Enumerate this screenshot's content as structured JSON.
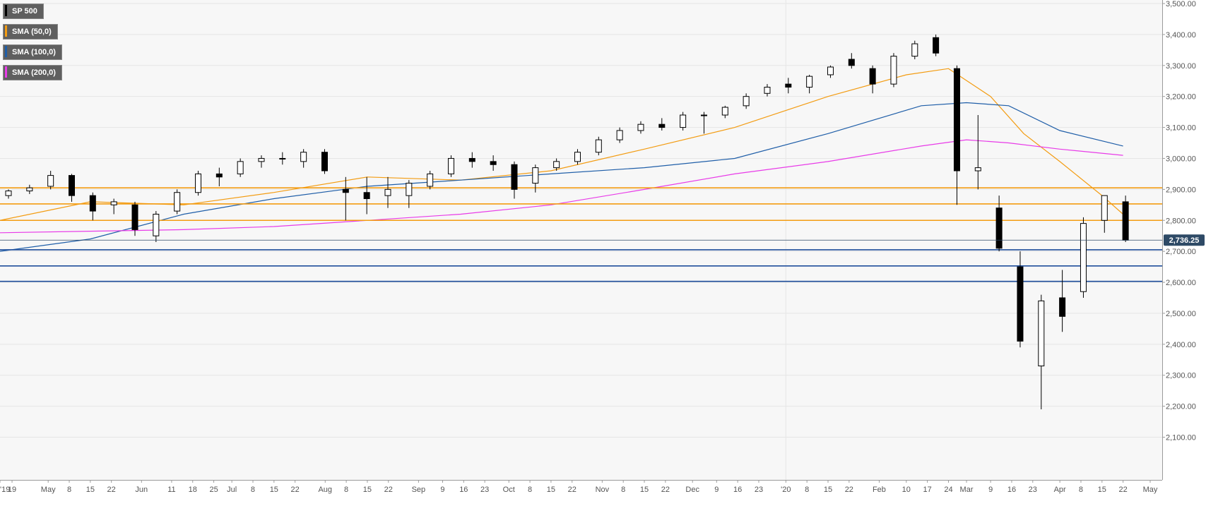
{
  "legend": [
    {
      "label": "SP 500",
      "color": "#000000"
    },
    {
      "label": "SMA (50,0)",
      "color": "#f39c12"
    },
    {
      "label": "SMA (100,0)",
      "color": "#1f5ea8"
    },
    {
      "label": "SMA (200,0)",
      "color": "#e83be8"
    }
  ],
  "colors": {
    "up": "#ffffff",
    "down": "#000000",
    "wick": "#000000",
    "resistance": "#f39c12",
    "support": "#1f4e9b",
    "grid": "#e6e6e6",
    "plot_bg": "#f7f7f7",
    "last_price_bg": "#2e4a66"
  },
  "chart_data": {
    "type": "candlestick",
    "instrument": "SP 500",
    "last_price": "2,736.25",
    "last_price_value": 2736.25,
    "ylim": [
      2070,
      3505
    ],
    "y_ticks": [
      {
        "value": 2100,
        "label": "2,100.00"
      },
      {
        "value": 2200,
        "label": "2,200.00"
      },
      {
        "value": 2300,
        "label": "2,300.00"
      },
      {
        "value": 2400,
        "label": "2,400.00"
      },
      {
        "value": 2500,
        "label": "2,500.00"
      },
      {
        "value": 2600,
        "label": "2,600.00"
      },
      {
        "value": 2700,
        "label": "2,700.00"
      },
      {
        "value": 2800,
        "label": "2,800.00"
      },
      {
        "value": 2900,
        "label": "2,900.00"
      },
      {
        "value": 3000,
        "label": "3,000.00"
      },
      {
        "value": 3100,
        "label": "3,100.00"
      },
      {
        "value": 3200,
        "label": "3,200.00"
      },
      {
        "value": 3300,
        "label": "3,300.00"
      },
      {
        "value": 3400,
        "label": "3,400.00"
      },
      {
        "value": 3500,
        "label": "3,500.00"
      }
    ],
    "x_ticks": [
      {
        "label": "'19",
        "date": "2019-04-15"
      },
      {
        "label": "19",
        "date": "2019-04-19"
      },
      {
        "label": "May",
        "date": "2019-05-01"
      },
      {
        "label": "8",
        "date": "2019-05-08"
      },
      {
        "label": "15",
        "date": "2019-05-15"
      },
      {
        "label": "22",
        "date": "2019-05-22"
      },
      {
        "label": "Jun",
        "date": "2019-06-01"
      },
      {
        "label": "11",
        "date": "2019-06-11"
      },
      {
        "label": "18",
        "date": "2019-06-18"
      },
      {
        "label": "25",
        "date": "2019-06-25"
      },
      {
        "label": "Jul",
        "date": "2019-07-01"
      },
      {
        "label": "8",
        "date": "2019-07-08"
      },
      {
        "label": "15",
        "date": "2019-07-15"
      },
      {
        "label": "22",
        "date": "2019-07-22"
      },
      {
        "label": "Aug",
        "date": "2019-08-01"
      },
      {
        "label": "8",
        "date": "2019-08-08"
      },
      {
        "label": "15",
        "date": "2019-08-15"
      },
      {
        "label": "22",
        "date": "2019-08-22"
      },
      {
        "label": "Sep",
        "date": "2019-09-01"
      },
      {
        "label": "9",
        "date": "2019-09-09"
      },
      {
        "label": "16",
        "date": "2019-09-16"
      },
      {
        "label": "23",
        "date": "2019-09-23"
      },
      {
        "label": "Oct",
        "date": "2019-10-01"
      },
      {
        "label": "8",
        "date": "2019-10-08"
      },
      {
        "label": "15",
        "date": "2019-10-15"
      },
      {
        "label": "22",
        "date": "2019-10-22"
      },
      {
        "label": "Nov",
        "date": "2019-11-01"
      },
      {
        "label": "8",
        "date": "2019-11-08"
      },
      {
        "label": "15",
        "date": "2019-11-15"
      },
      {
        "label": "22",
        "date": "2019-11-22"
      },
      {
        "label": "Dec",
        "date": "2019-12-01"
      },
      {
        "label": "9",
        "date": "2019-12-09"
      },
      {
        "label": "16",
        "date": "2019-12-16"
      },
      {
        "label": "23",
        "date": "2019-12-23"
      },
      {
        "label": "'20",
        "date": "2020-01-01"
      },
      {
        "label": "8",
        "date": "2020-01-08"
      },
      {
        "label": "15",
        "date": "2020-01-15"
      },
      {
        "label": "22",
        "date": "2020-01-22"
      },
      {
        "label": "Feb",
        "date": "2020-02-01"
      },
      {
        "label": "10",
        "date": "2020-02-10"
      },
      {
        "label": "17",
        "date": "2020-02-17"
      },
      {
        "label": "24",
        "date": "2020-02-24"
      },
      {
        "label": "Mar",
        "date": "2020-03-01"
      },
      {
        "label": "9",
        "date": "2020-03-09"
      },
      {
        "label": "16",
        "date": "2020-03-16"
      },
      {
        "label": "23",
        "date": "2020-03-23"
      },
      {
        "label": "Apr",
        "date": "2020-04-01"
      },
      {
        "label": "8",
        "date": "2020-04-08"
      },
      {
        "label": "15",
        "date": "2020-04-15"
      },
      {
        "label": "22",
        "date": "2020-04-22"
      },
      {
        "label": "May",
        "date": "2020-05-01"
      }
    ],
    "vertical_gridline_dates": [
      "2020-01-01"
    ],
    "horizontal_levels": [
      {
        "value": 2905,
        "kind": "resistance"
      },
      {
        "value": 2853,
        "kind": "resistance"
      },
      {
        "value": 2800,
        "kind": "resistance"
      },
      {
        "value": 2705,
        "kind": "support"
      },
      {
        "value": 2653,
        "kind": "support"
      },
      {
        "value": 2603,
        "kind": "support"
      }
    ],
    "series": [
      {
        "name": "SP 500",
        "type": "candlestick",
        "ohlc": [
          [
            "2019-04-15",
            2880,
            2900,
            2870,
            2895
          ],
          [
            "2019-04-22",
            2895,
            2915,
            2885,
            2905
          ],
          [
            "2019-04-29",
            2910,
            2960,
            2900,
            2945
          ],
          [
            "2019-05-06",
            2945,
            2950,
            2860,
            2880
          ],
          [
            "2019-05-13",
            2880,
            2890,
            2800,
            2830
          ],
          [
            "2019-05-20",
            2850,
            2870,
            2820,
            2860
          ],
          [
            "2019-05-27",
            2850,
            2860,
            2750,
            2770
          ],
          [
            "2019-06-03",
            2750,
            2830,
            2730,
            2820
          ],
          [
            "2019-06-10",
            2830,
            2900,
            2820,
            2890
          ],
          [
            "2019-06-17",
            2890,
            2960,
            2880,
            2950
          ],
          [
            "2019-06-24",
            2950,
            2970,
            2910,
            2940
          ],
          [
            "2019-07-01",
            2950,
            3000,
            2940,
            2990
          ],
          [
            "2019-07-08",
            2990,
            3010,
            2970,
            3000
          ],
          [
            "2019-07-15",
            3000,
            3020,
            2980,
            3000
          ],
          [
            "2019-07-22",
            2990,
            3030,
            2970,
            3020
          ],
          [
            "2019-07-29",
            3020,
            3030,
            2950,
            2960
          ],
          [
            "2019-08-05",
            2900,
            2940,
            2800,
            2890
          ],
          [
            "2019-08-12",
            2890,
            2940,
            2820,
            2870
          ],
          [
            "2019-08-19",
            2880,
            2940,
            2840,
            2900
          ],
          [
            "2019-08-26",
            2880,
            2930,
            2840,
            2920
          ],
          [
            "2019-09-02",
            2910,
            2960,
            2900,
            2950
          ],
          [
            "2019-09-09",
            2950,
            3010,
            2940,
            3000
          ],
          [
            "2019-09-16",
            3000,
            3020,
            2970,
            2990
          ],
          [
            "2019-09-23",
            2990,
            3010,
            2960,
            2980
          ],
          [
            "2019-09-30",
            2980,
            2990,
            2870,
            2900
          ],
          [
            "2019-10-07",
            2920,
            2980,
            2890,
            2970
          ],
          [
            "2019-10-14",
            2970,
            3000,
            2960,
            2990
          ],
          [
            "2019-10-21",
            2990,
            3030,
            2980,
            3020
          ],
          [
            "2019-10-28",
            3020,
            3070,
            3010,
            3060
          ],
          [
            "2019-11-04",
            3060,
            3100,
            3050,
            3090
          ],
          [
            "2019-11-11",
            3090,
            3120,
            3080,
            3110
          ],
          [
            "2019-11-18",
            3110,
            3130,
            3090,
            3100
          ],
          [
            "2019-11-25",
            3100,
            3150,
            3090,
            3140
          ],
          [
            "2019-12-02",
            3140,
            3150,
            3080,
            3140
          ],
          [
            "2019-12-09",
            3140,
            3170,
            3130,
            3165
          ],
          [
            "2019-12-16",
            3170,
            3210,
            3160,
            3200
          ],
          [
            "2019-12-23",
            3210,
            3240,
            3200,
            3230
          ],
          [
            "2019-12-30",
            3240,
            3260,
            3210,
            3230
          ],
          [
            "2020-01-06",
            3230,
            3270,
            3210,
            3265
          ],
          [
            "2020-01-13",
            3270,
            3300,
            3260,
            3295
          ],
          [
            "2020-01-20",
            3320,
            3340,
            3290,
            3300
          ],
          [
            "2020-01-27",
            3290,
            3300,
            3210,
            3240
          ],
          [
            "2020-02-03",
            3240,
            3340,
            3230,
            3330
          ],
          [
            "2020-02-10",
            3330,
            3380,
            3320,
            3370
          ],
          [
            "2020-02-17",
            3390,
            3400,
            3330,
            3340
          ],
          [
            "2020-02-24",
            3290,
            3300,
            2850,
            2960
          ],
          [
            "2020-03-02",
            2960,
            3140,
            2900,
            2970
          ],
          [
            "2020-03-09",
            2840,
            2880,
            2700,
            2710
          ],
          [
            "2020-03-16",
            2650,
            2700,
            2390,
            2410
          ],
          [
            "2020-03-23",
            2330,
            2560,
            2190,
            2540
          ],
          [
            "2020-03-30",
            2550,
            2640,
            2440,
            2490
          ],
          [
            "2020-04-06",
            2570,
            2810,
            2550,
            2790
          ],
          [
            "2020-04-13",
            2800,
            2880,
            2760,
            2880
          ],
          [
            "2020-04-20",
            2860,
            2880,
            2730,
            2736
          ]
        ]
      },
      {
        "name": "SMA (50,0)",
        "type": "line",
        "color": "#f39c12",
        "points": [
          [
            "2019-04-15",
            2800
          ],
          [
            "2019-05-15",
            2860
          ],
          [
            "2019-06-15",
            2850
          ],
          [
            "2019-07-15",
            2890
          ],
          [
            "2019-08-15",
            2940
          ],
          [
            "2019-09-15",
            2930
          ],
          [
            "2019-10-15",
            2960
          ],
          [
            "2019-11-15",
            3030
          ],
          [
            "2019-12-15",
            3100
          ],
          [
            "2020-01-15",
            3200
          ],
          [
            "2020-02-10",
            3270
          ],
          [
            "2020-02-24",
            3290
          ],
          [
            "2020-03-09",
            3200
          ],
          [
            "2020-03-20",
            3080
          ],
          [
            "2020-04-01",
            2990
          ],
          [
            "2020-04-15",
            2880
          ],
          [
            "2020-04-22",
            2820
          ]
        ]
      },
      {
        "name": "SMA (100,0)",
        "type": "line",
        "color": "#1f5ea8",
        "points": [
          [
            "2019-04-15",
            2700
          ],
          [
            "2019-05-15",
            2740
          ],
          [
            "2019-06-15",
            2820
          ],
          [
            "2019-07-15",
            2870
          ],
          [
            "2019-08-15",
            2910
          ],
          [
            "2019-09-15",
            2930
          ],
          [
            "2019-10-15",
            2950
          ],
          [
            "2019-11-15",
            2970
          ],
          [
            "2019-12-15",
            3000
          ],
          [
            "2020-01-15",
            3080
          ],
          [
            "2020-02-15",
            3170
          ],
          [
            "2020-03-01",
            3180
          ],
          [
            "2020-03-15",
            3170
          ],
          [
            "2020-04-01",
            3090
          ],
          [
            "2020-04-22",
            3040
          ]
        ]
      },
      {
        "name": "SMA (200,0)",
        "type": "line",
        "color": "#e83be8",
        "points": [
          [
            "2019-04-15",
            2760
          ],
          [
            "2019-05-15",
            2765
          ],
          [
            "2019-06-15",
            2770
          ],
          [
            "2019-07-15",
            2780
          ],
          [
            "2019-08-15",
            2800
          ],
          [
            "2019-09-15",
            2820
          ],
          [
            "2019-10-15",
            2850
          ],
          [
            "2019-11-15",
            2900
          ],
          [
            "2019-12-15",
            2950
          ],
          [
            "2020-01-15",
            2990
          ],
          [
            "2020-02-15",
            3040
          ],
          [
            "2020-03-01",
            3060
          ],
          [
            "2020-03-15",
            3050
          ],
          [
            "2020-04-01",
            3030
          ],
          [
            "2020-04-22",
            3010
          ]
        ]
      }
    ]
  }
}
